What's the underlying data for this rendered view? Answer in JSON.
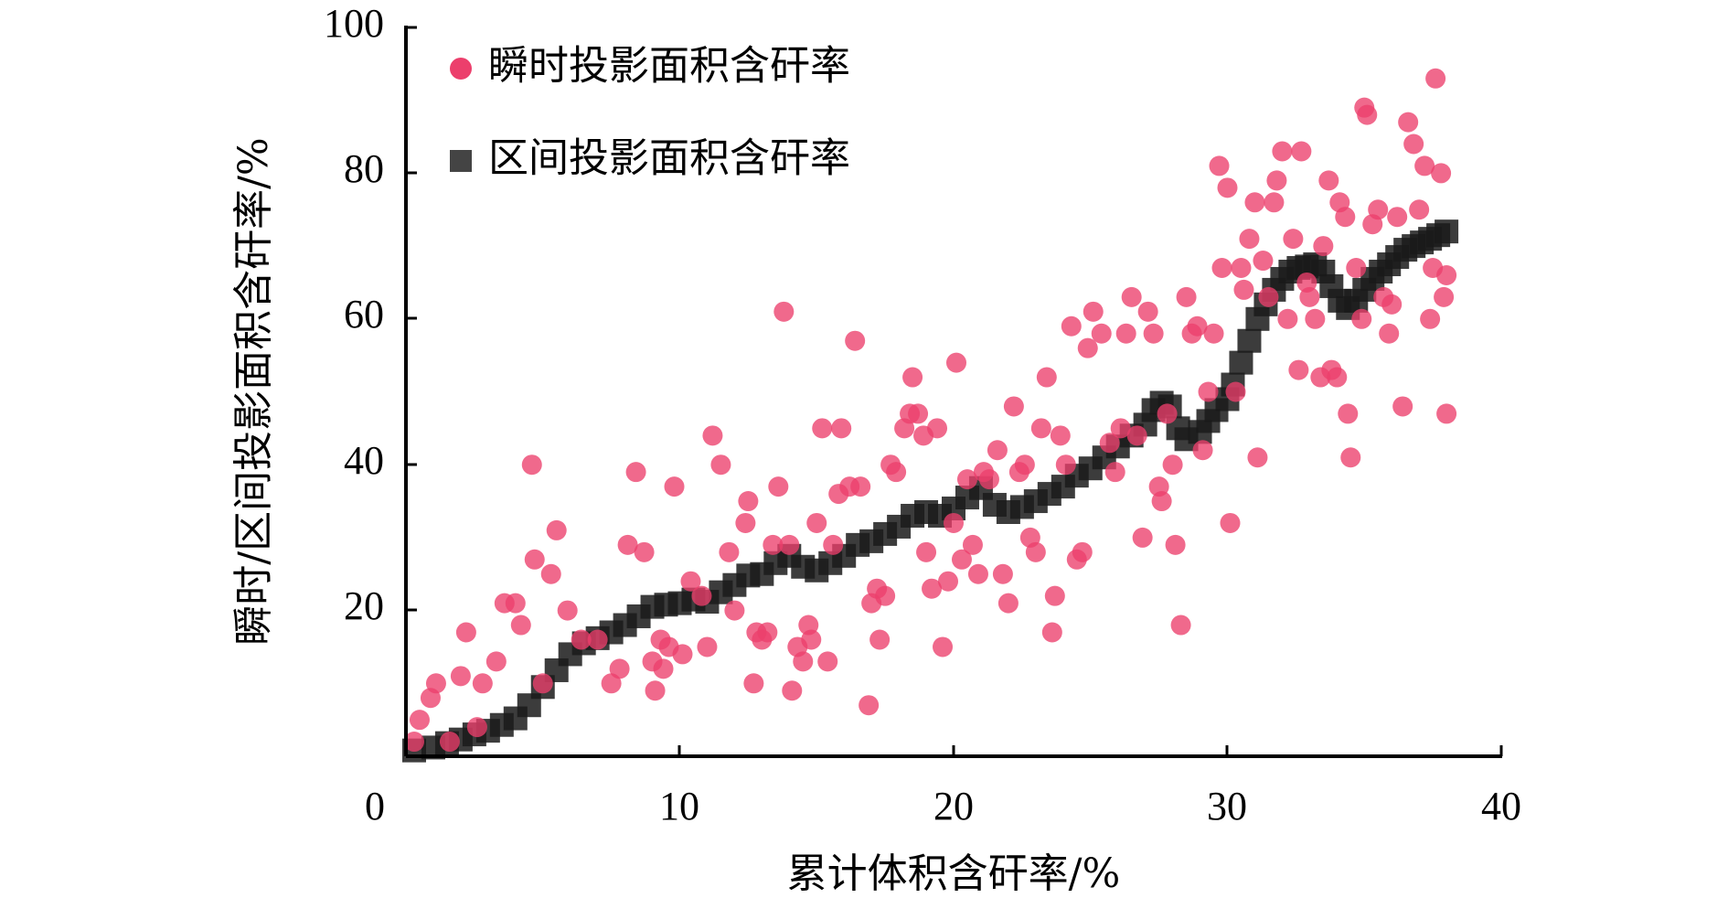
{
  "chart_data": {
    "type": "scatter",
    "xlabel": "累计体积含矸率/%",
    "ylabel": "瞬时/区间投影面积含矸率/%",
    "xlim": [
      0,
      40
    ],
    "ylim": [
      0,
      100
    ],
    "x_ticks": [
      "0",
      "10",
      "20",
      "30",
      "40"
    ],
    "y_ticks": [
      "20",
      "40",
      "60",
      "80",
      "100"
    ],
    "legend_position": "top-left",
    "grid": false,
    "colors": {
      "instant": "#ec3f6c",
      "interval": "#1a1a1a"
    },
    "series": [
      {
        "name": "瞬时投影面积含矸率",
        "marker": "circle",
        "points": [
          [
            0.3,
            2
          ],
          [
            0.5,
            5
          ],
          [
            0.9,
            8
          ],
          [
            1.1,
            10
          ],
          [
            1.6,
            2
          ],
          [
            2,
            11
          ],
          [
            2.2,
            17
          ],
          [
            2.6,
            4
          ],
          [
            2.8,
            10
          ],
          [
            3.3,
            13
          ],
          [
            3.6,
            21
          ],
          [
            4,
            21
          ],
          [
            4.2,
            18
          ],
          [
            4.6,
            40
          ],
          [
            4.7,
            27
          ],
          [
            5,
            10
          ],
          [
            5.3,
            25
          ],
          [
            5.5,
            31
          ],
          [
            5.9,
            20
          ],
          [
            6.4,
            16
          ],
          [
            7,
            16
          ],
          [
            7.5,
            10
          ],
          [
            7.8,
            12
          ],
          [
            8.1,
            29
          ],
          [
            8.4,
            39
          ],
          [
            8.7,
            28
          ],
          [
            9,
            13
          ],
          [
            9.1,
            9
          ],
          [
            9.3,
            16
          ],
          [
            9.4,
            12
          ],
          [
            9.6,
            15
          ],
          [
            9.8,
            37
          ],
          [
            10.1,
            14
          ],
          [
            10.4,
            24
          ],
          [
            10.8,
            22
          ],
          [
            11,
            15
          ],
          [
            11.2,
            44
          ],
          [
            11.5,
            40
          ],
          [
            11.8,
            28
          ],
          [
            12,
            20
          ],
          [
            12.4,
            32
          ],
          [
            12.5,
            35
          ],
          [
            12.7,
            10
          ],
          [
            12.8,
            17
          ],
          [
            13,
            16
          ],
          [
            13.2,
            17
          ],
          [
            13.4,
            29
          ],
          [
            13.6,
            37
          ],
          [
            13.8,
            61
          ],
          [
            14,
            29
          ],
          [
            14.1,
            9
          ],
          [
            14.3,
            15
          ],
          [
            14.5,
            13
          ],
          [
            14.7,
            18
          ],
          [
            14.8,
            16
          ],
          [
            15,
            32
          ],
          [
            15.2,
            45
          ],
          [
            15.4,
            13
          ],
          [
            15.6,
            29
          ],
          [
            15.8,
            36
          ],
          [
            15.9,
            45
          ],
          [
            16.2,
            37
          ],
          [
            16.4,
            57
          ],
          [
            16.6,
            37
          ],
          [
            16.9,
            7
          ],
          [
            17,
            21
          ],
          [
            17.2,
            23
          ],
          [
            17.3,
            16
          ],
          [
            17.5,
            22
          ],
          [
            17.7,
            40
          ],
          [
            17.9,
            39
          ],
          [
            18.2,
            45
          ],
          [
            18.4,
            47
          ],
          [
            18.5,
            52
          ],
          [
            18.7,
            47
          ],
          [
            18.9,
            44
          ],
          [
            19,
            28
          ],
          [
            19.2,
            23
          ],
          [
            19.4,
            45
          ],
          [
            19.6,
            15
          ],
          [
            19.8,
            24
          ],
          [
            20,
            32
          ],
          [
            20.1,
            54
          ],
          [
            20.3,
            27
          ],
          [
            20.5,
            38
          ],
          [
            20.7,
            29
          ],
          [
            20.9,
            25
          ],
          [
            21.1,
            39
          ],
          [
            21.3,
            38
          ],
          [
            21.6,
            42
          ],
          [
            21.8,
            25
          ],
          [
            22,
            21
          ],
          [
            22.2,
            48
          ],
          [
            22.4,
            39
          ],
          [
            22.6,
            40
          ],
          [
            22.8,
            30
          ],
          [
            23,
            28
          ],
          [
            23.2,
            45
          ],
          [
            23.4,
            52
          ],
          [
            23.6,
            17
          ],
          [
            23.7,
            22
          ],
          [
            23.9,
            44
          ],
          [
            24.1,
            40
          ],
          [
            24.3,
            59
          ],
          [
            24.5,
            27
          ],
          [
            24.7,
            28
          ],
          [
            24.9,
            56
          ],
          [
            25.1,
            61
          ],
          [
            25.4,
            58
          ],
          [
            25.7,
            43
          ],
          [
            25.9,
            39
          ],
          [
            26.1,
            45
          ],
          [
            26.3,
            58
          ],
          [
            26.5,
            63
          ],
          [
            26.7,
            44
          ],
          [
            26.9,
            30
          ],
          [
            27.1,
            61
          ],
          [
            27.3,
            58
          ],
          [
            27.5,
            37
          ],
          [
            27.6,
            35
          ],
          [
            27.8,
            47
          ],
          [
            28,
            40
          ],
          [
            28.1,
            29
          ],
          [
            28.3,
            18
          ],
          [
            28.5,
            63
          ],
          [
            28.7,
            58
          ],
          [
            28.9,
            59
          ],
          [
            29.1,
            42
          ],
          [
            29.3,
            50
          ],
          [
            29.5,
            58
          ],
          [
            29.7,
            81
          ],
          [
            29.8,
            67
          ],
          [
            30,
            78
          ],
          [
            30.1,
            32
          ],
          [
            30.3,
            50
          ],
          [
            30.5,
            67
          ],
          [
            30.6,
            64
          ],
          [
            30.8,
            71
          ],
          [
            31,
            76
          ],
          [
            31.1,
            41
          ],
          [
            31.3,
            68
          ],
          [
            31.5,
            63
          ],
          [
            31.7,
            76
          ],
          [
            31.8,
            79
          ],
          [
            32,
            83
          ],
          [
            32.2,
            60
          ],
          [
            32.4,
            71
          ],
          [
            32.6,
            53
          ],
          [
            32.7,
            83
          ],
          [
            32.9,
            65
          ],
          [
            33,
            63
          ],
          [
            33.2,
            60
          ],
          [
            33.4,
            52
          ],
          [
            33.5,
            70
          ],
          [
            33.7,
            79
          ],
          [
            33.8,
            53
          ],
          [
            34,
            52
          ],
          [
            34.1,
            76
          ],
          [
            34.3,
            74
          ],
          [
            34.4,
            47
          ],
          [
            34.5,
            41
          ],
          [
            34.7,
            67
          ],
          [
            34.9,
            60
          ],
          [
            35,
            89
          ],
          [
            35.1,
            88
          ],
          [
            35.3,
            73
          ],
          [
            35.5,
            75
          ],
          [
            35.7,
            63
          ],
          [
            35.9,
            58
          ],
          [
            36,
            62
          ],
          [
            36.2,
            74
          ],
          [
            36.4,
            48
          ],
          [
            36.6,
            87
          ],
          [
            36.8,
            84
          ],
          [
            37,
            75
          ],
          [
            37.2,
            81
          ],
          [
            37.4,
            60
          ],
          [
            37.5,
            67
          ],
          [
            37.6,
            93
          ],
          [
            37.8,
            80
          ],
          [
            37.9,
            63
          ],
          [
            38,
            47
          ],
          [
            38,
            66
          ]
        ]
      },
      {
        "name": "区间投影面积含矸率",
        "marker": "square",
        "points": [
          [
            0.3,
            0.8
          ],
          [
            1,
            1.2
          ],
          [
            1.5,
            1.8
          ],
          [
            2,
            2.3
          ],
          [
            2.5,
            3
          ],
          [
            3,
            3.5
          ],
          [
            3.5,
            4.3
          ],
          [
            4,
            5.2
          ],
          [
            4.5,
            7
          ],
          [
            5,
            9.5
          ],
          [
            5.5,
            11.8
          ],
          [
            6,
            14
          ],
          [
            6.5,
            15.5
          ],
          [
            7,
            16.2
          ],
          [
            7.5,
            17
          ],
          [
            8,
            18
          ],
          [
            8.5,
            19.2
          ],
          [
            9,
            20.5
          ],
          [
            9.5,
            20.8
          ],
          [
            10,
            21
          ],
          [
            10.5,
            21.5
          ],
          [
            11,
            21.2
          ],
          [
            11.5,
            22.5
          ],
          [
            12,
            23.5
          ],
          [
            12.5,
            24.8
          ],
          [
            13,
            25
          ],
          [
            13.5,
            26.5
          ],
          [
            14,
            27.5
          ],
          [
            14.5,
            26
          ],
          [
            15,
            25.5
          ],
          [
            15.5,
            26.5
          ],
          [
            16,
            27.5
          ],
          [
            16.5,
            29
          ],
          [
            17,
            29.5
          ],
          [
            17.5,
            30.5
          ],
          [
            18,
            31.5
          ],
          [
            18.5,
            33
          ],
          [
            19,
            33.5
          ],
          [
            19.5,
            33
          ],
          [
            20,
            34
          ],
          [
            20.5,
            35.5
          ],
          [
            21,
            36.8
          ],
          [
            21.5,
            34.5
          ],
          [
            22,
            33.5
          ],
          [
            22.5,
            34.2
          ],
          [
            23,
            35
          ],
          [
            23.5,
            36
          ],
          [
            24,
            37
          ],
          [
            24.5,
            38.5
          ],
          [
            25,
            39.5
          ],
          [
            25.5,
            41
          ],
          [
            26,
            42.5
          ],
          [
            26.5,
            44
          ],
          [
            27,
            45.5
          ],
          [
            27.3,
            47.5
          ],
          [
            27.6,
            48.5
          ],
          [
            27.9,
            48
          ],
          [
            28.2,
            45
          ],
          [
            28.5,
            43.5
          ],
          [
            29,
            44.5
          ],
          [
            29.3,
            46
          ],
          [
            29.6,
            47.5
          ],
          [
            30,
            49
          ],
          [
            30.2,
            51
          ],
          [
            30.5,
            54
          ],
          [
            30.8,
            57
          ],
          [
            31.1,
            60
          ],
          [
            31.4,
            62
          ],
          [
            31.7,
            64
          ],
          [
            32,
            65.5
          ],
          [
            32.3,
            66.5
          ],
          [
            32.6,
            67
          ],
          [
            32.9,
            67.2
          ],
          [
            33.2,
            67.5
          ],
          [
            33.5,
            66.5
          ],
          [
            33.8,
            64.5
          ],
          [
            34.1,
            62.5
          ],
          [
            34.4,
            61.5
          ],
          [
            34.7,
            62.5
          ],
          [
            35,
            64
          ],
          [
            35.3,
            65.5
          ],
          [
            35.6,
            66.5
          ],
          [
            35.9,
            67.5
          ],
          [
            36.2,
            68.5
          ],
          [
            36.5,
            69.5
          ],
          [
            36.8,
            70
          ],
          [
            37.1,
            70.5
          ],
          [
            37.4,
            71
          ],
          [
            37.7,
            71.5
          ],
          [
            38,
            72
          ]
        ]
      }
    ]
  }
}
